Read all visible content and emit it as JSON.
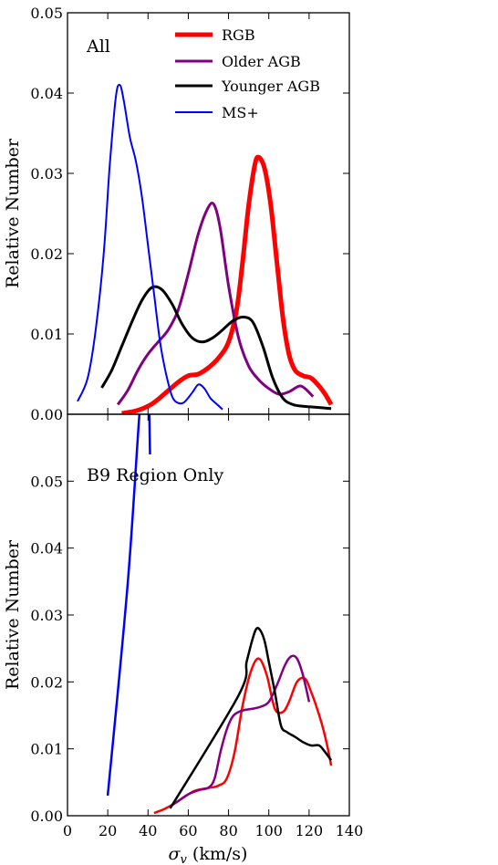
{
  "chart_data": [
    {
      "type": "line",
      "panel_label": "All",
      "ylabel": "Relative Number",
      "xlabel": "",
      "xlim": [
        0,
        140
      ],
      "ylim": [
        0,
        0.05
      ],
      "yticks": [
        "0.00",
        "0.01",
        "0.02",
        "0.03",
        "0.04",
        "0.05"
      ],
      "ytick_values": [
        0,
        0.01,
        0.02,
        0.03,
        0.04,
        0.05
      ],
      "xtick_values": [
        0,
        20,
        40,
        60,
        80,
        100,
        120,
        140
      ],
      "grid": false,
      "legend": "top-right",
      "series": [
        {
          "name": "RGB",
          "color": "#ff0000",
          "width": 5,
          "x": [
            27,
            35,
            42,
            48,
            55,
            60,
            65,
            70,
            75,
            80,
            84,
            87,
            90,
            93,
            95,
            98,
            101,
            104,
            107,
            110,
            113,
            117,
            121,
            125,
            128,
            131
          ],
          "y": [
            0.0001,
            0.0005,
            0.0013,
            0.0025,
            0.004,
            0.0048,
            0.005,
            0.0058,
            0.007,
            0.009,
            0.013,
            0.019,
            0.026,
            0.031,
            0.032,
            0.0305,
            0.026,
            0.019,
            0.012,
            0.0075,
            0.0055,
            0.0048,
            0.0045,
            0.0035,
            0.0025,
            0.0012
          ]
        },
        {
          "name": "Older AGB",
          "color": "#800080",
          "width": 3,
          "x": [
            25,
            30,
            35,
            40,
            45,
            50,
            55,
            60,
            65,
            70,
            73,
            76,
            80,
            85,
            90,
            95,
            100,
            105,
            110,
            115,
            118,
            122
          ],
          "y": [
            0.0012,
            0.003,
            0.0055,
            0.0075,
            0.009,
            0.0105,
            0.013,
            0.0175,
            0.0225,
            0.0258,
            0.026,
            0.023,
            0.016,
            0.0095,
            0.006,
            0.0043,
            0.0032,
            0.0025,
            0.0028,
            0.0035,
            0.0032,
            0.0022
          ]
        },
        {
          "name": "Younger AGB",
          "color": "#000000",
          "width": 3,
          "x": [
            17,
            22,
            27,
            32,
            37,
            42,
            47,
            52,
            57,
            62,
            67,
            72,
            77,
            82,
            87,
            92,
            97,
            102,
            107,
            112,
            117,
            122,
            127,
            131
          ],
          "y": [
            0.0033,
            0.0055,
            0.0085,
            0.0115,
            0.0142,
            0.0158,
            0.0155,
            0.0137,
            0.0112,
            0.0095,
            0.009,
            0.0095,
            0.0105,
            0.0116,
            0.0121,
            0.0115,
            0.0085,
            0.0045,
            0.002,
            0.0012,
            0.001,
            0.0009,
            0.0008,
            0.0007
          ]
        },
        {
          "name": "MS+",
          "color": "#0000ff",
          "width": 2,
          "x": [
            5,
            10,
            14,
            18,
            21,
            24,
            26,
            28,
            31,
            34,
            37,
            40,
            43,
            46,
            49,
            52,
            55,
            58,
            62,
            65,
            68,
            71,
            74,
            77
          ],
          "y": [
            0.0016,
            0.0045,
            0.0105,
            0.02,
            0.031,
            0.0395,
            0.041,
            0.039,
            0.0345,
            0.0315,
            0.027,
            0.021,
            0.015,
            0.009,
            0.005,
            0.0022,
            0.0014,
            0.0015,
            0.0027,
            0.0037,
            0.0032,
            0.002,
            0.0013,
            0.0006
          ]
        }
      ]
    },
    {
      "type": "line",
      "panel_label": "B9 Region Only",
      "ylabel": "Relative Number",
      "xlabel": "σ_v (km/s)",
      "xlim": [
        0,
        140
      ],
      "ylim": [
        0,
        0.06
      ],
      "yticks": [
        "0.00",
        "0.01",
        "0.02",
        "0.03",
        "0.04",
        "0.05"
      ],
      "ytick_values": [
        0,
        0.01,
        0.02,
        0.03,
        0.04,
        0.05
      ],
      "xticks": [
        "0",
        "20",
        "40",
        "60",
        "80",
        "100",
        "120",
        "140"
      ],
      "xtick_values": [
        0,
        20,
        40,
        60,
        80,
        100,
        120,
        140
      ],
      "grid": false,
      "series": [
        {
          "name": "RGB",
          "color": "#ff0000",
          "width": 2.5,
          "x": [
            43,
            48,
            53,
            58,
            63,
            67,
            71,
            75,
            79,
            83,
            87,
            91,
            95,
            99,
            103,
            107,
            110,
            114,
            118,
            121,
            124,
            127,
            129,
            131
          ],
          "y": [
            0.0004,
            0.001,
            0.0018,
            0.0028,
            0.0037,
            0.004,
            0.0042,
            0.0045,
            0.0055,
            0.0095,
            0.0165,
            0.0215,
            0.0235,
            0.021,
            0.016,
            0.0155,
            0.017,
            0.02,
            0.0205,
            0.0185,
            0.016,
            0.013,
            0.0105,
            0.0075
          ]
        },
        {
          "name": "Older AGB",
          "color": "#800080",
          "width": 2.5,
          "x": [
            51,
            55,
            60,
            65,
            70,
            73,
            76,
            79,
            82,
            85,
            88,
            92,
            96,
            100,
            104,
            108,
            111,
            114,
            117,
            120
          ],
          "y": [
            0.0014,
            0.0022,
            0.0032,
            0.0038,
            0.0042,
            0.0055,
            0.0095,
            0.0128,
            0.0148,
            0.0155,
            0.0158,
            0.016,
            0.0163,
            0.017,
            0.0195,
            0.0225,
            0.0238,
            0.0235,
            0.021,
            0.017
          ]
        },
        {
          "name": "Younger AGB",
          "color": "#000000",
          "width": 2.5,
          "x": [
            51,
            85,
            89,
            92,
            94,
            96,
            98,
            100,
            103,
            106,
            109,
            113,
            117,
            121,
            125,
            128,
            131
          ],
          "y": [
            0.0011,
            0.018,
            0.023,
            0.0265,
            0.028,
            0.0276,
            0.026,
            0.023,
            0.0185,
            0.0135,
            0.0125,
            0.0118,
            0.011,
            0.0105,
            0.0105,
            0.0095,
            0.0083
          ]
        },
        {
          "name": "MS+",
          "color": "#0000ff",
          "width": 2.5,
          "x": [
            20,
            30,
            37,
            40,
            41
          ],
          "y": [
            0.003,
            0.035,
            0.065,
            0.065,
            0.054
          ]
        }
      ]
    }
  ]
}
